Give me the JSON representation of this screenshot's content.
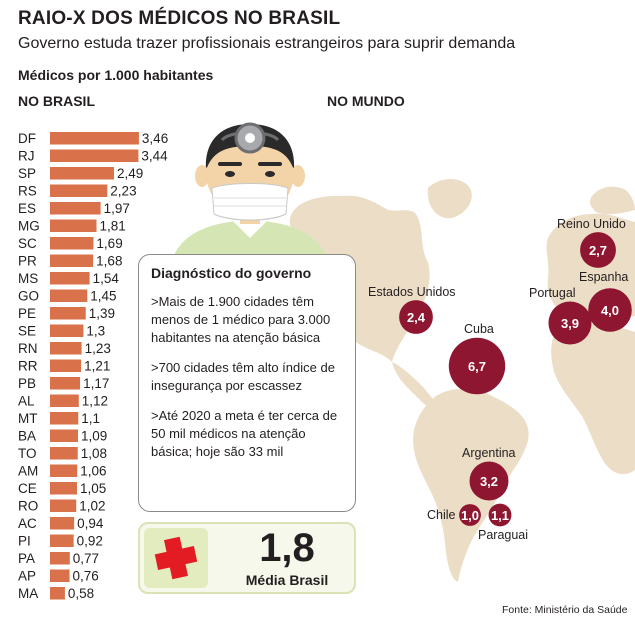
{
  "header": {
    "title": "RAIO-X DOS MÉDICOS NO BRASIL",
    "subtitle": "Governo estuda trazer profissionais estrangeiros para suprir demanda",
    "metric": "Médicos por 1.000 habitantes"
  },
  "sections": {
    "brazil": "NO BRASIL",
    "world": "NO MUNDO"
  },
  "chart_data": [
    {
      "type": "bar",
      "orientation": "horizontal",
      "categories": [
        "DF",
        "RJ",
        "SP",
        "RS",
        "ES",
        "MG",
        "SC",
        "PR",
        "MS",
        "GO",
        "PE",
        "SE",
        "RN",
        "RR",
        "PB",
        "AL",
        "MT",
        "BA",
        "TO",
        "AM",
        "CE",
        "RO",
        "AC",
        "PI",
        "PA",
        "AP",
        "MA"
      ],
      "values": [
        3.46,
        3.44,
        2.49,
        2.23,
        1.97,
        1.81,
        1.69,
        1.68,
        1.54,
        1.45,
        1.39,
        1.3,
        1.23,
        1.21,
        1.17,
        1.12,
        1.1,
        1.09,
        1.08,
        1.06,
        1.05,
        1.02,
        0.94,
        0.92,
        0.77,
        0.76,
        0.58
      ],
      "value_labels": [
        "3,46",
        "3,44",
        "2,49",
        "2,23",
        "1,97",
        "1,81",
        "1,69",
        "1,68",
        "1,54",
        "1,45",
        "1,39",
        "1,3",
        "1,23",
        "1,21",
        "1,17",
        "1,12",
        "1,1",
        "1,09",
        "1,08",
        "1,06",
        "1,05",
        "1,02",
        "0,94",
        "0,92",
        "0,77",
        "0,76",
        "0,58"
      ],
      "bar_color": "#d9714a"
    },
    {
      "type": "bubble_map",
      "points": [
        {
          "name": "Estados Unidos",
          "value": 2.4,
          "label": "2,4"
        },
        {
          "name": "Cuba",
          "value": 6.7,
          "label": "6,7"
        },
        {
          "name": "Reino Unido",
          "value": 2.7,
          "label": "2,7"
        },
        {
          "name": "Portugal",
          "value": 3.9,
          "label": "3,9"
        },
        {
          "name": "Espanha",
          "value": 4.0,
          "label": "4,0"
        },
        {
          "name": "Argentina",
          "value": 3.2,
          "label": "3,2"
        },
        {
          "name": "Chile",
          "value": 1.0,
          "label": "1,0"
        },
        {
          "name": "Paraguai",
          "value": 1.1,
          "label": "1,1"
        }
      ],
      "bubble_color": "#8e1630",
      "land_color": "#ecddc6"
    }
  ],
  "diagnostico": {
    "title": "Diagnóstico do governo",
    "item1": ">Mais de 1.900 cidades têm menos de 1 médico para 3.000 habitantes na atenção básica",
    "item2": ">700 cidades têm alto índice de insegurança por escassez",
    "item3": ">Até 2020 a meta é ter cerca de 50 mil médicos na atenção básica; hoje são 33 mil"
  },
  "average": {
    "value": "1,8",
    "label": "Média Brasil"
  },
  "source": "Fonte: Ministério da Saúde"
}
